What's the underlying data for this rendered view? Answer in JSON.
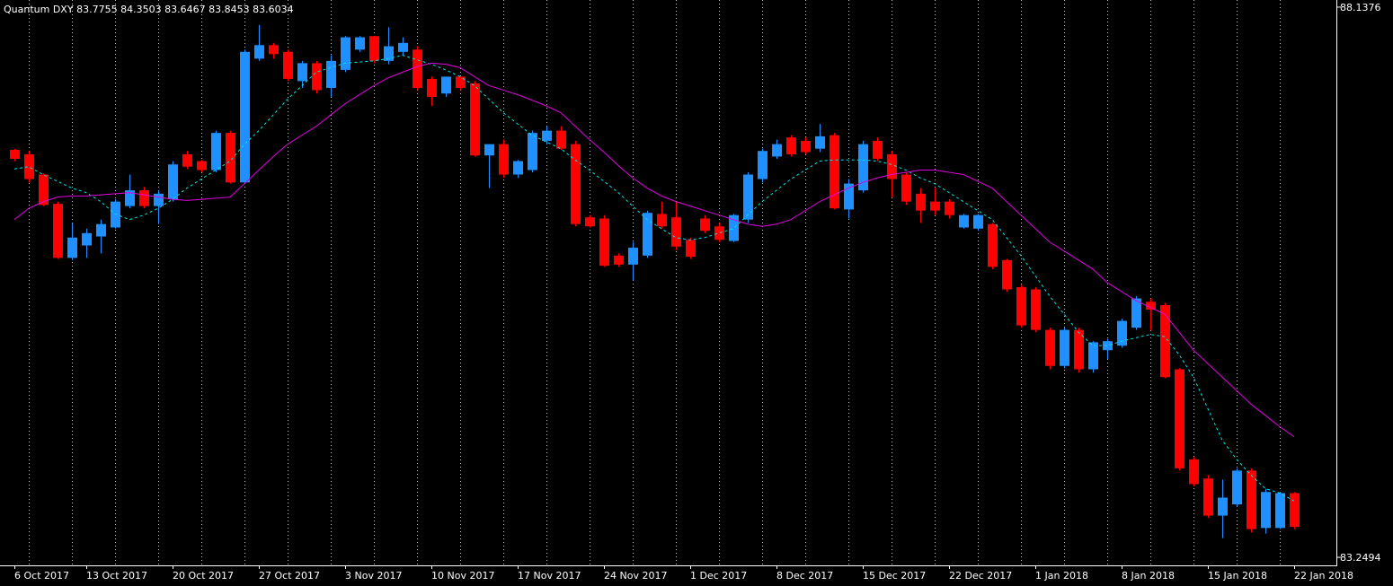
{
  "chart_data": {
    "type": "candlestick",
    "title": "Quantum DXY",
    "header_values": [
      83.7755,
      84.3503,
      83.6467,
      83.8453,
      83.6034
    ],
    "categories": [
      "6 Oct 2017",
      null,
      null,
      null,
      null,
      "13 Oct 2017",
      null,
      null,
      null,
      null,
      null,
      "20 Oct 2017",
      null,
      null,
      null,
      null,
      null,
      "27 Oct 2017",
      null,
      null,
      null,
      null,
      null,
      "3 Nov 2017",
      null,
      null,
      null,
      null,
      null,
      "10 Nov 2017",
      null,
      null,
      null,
      null,
      null,
      "17 Nov 2017",
      null,
      null,
      null,
      null,
      null,
      "24 Nov 2017",
      null,
      null,
      null,
      null,
      null,
      "1 Dec 2017",
      null,
      null,
      null,
      null,
      null,
      "8 Dec 2017",
      null,
      null,
      null,
      null,
      null,
      "15 Dec 2017",
      null,
      null,
      null,
      null,
      null,
      "22 Dec 2017",
      null,
      null,
      null,
      null,
      null,
      "1 Jan 2018",
      null,
      null,
      null,
      null,
      null,
      "8 Jan 2018",
      null,
      null,
      null,
      null,
      null,
      "15 Jan 2018",
      null,
      null,
      null,
      null,
      null,
      "22 Jan 2018"
    ],
    "open": [
      86.87,
      86.83,
      86.65,
      86.39,
      85.91,
      86.02,
      86.1,
      86.18,
      86.37,
      86.51,
      86.37,
      86.43,
      86.83,
      86.77,
      86.69,
      87.02,
      86.58,
      87.68,
      87.8,
      87.74,
      87.48,
      87.64,
      87.42,
      87.58,
      87.76,
      87.88,
      87.66,
      87.74,
      87.76,
      87.5,
      87.37,
      87.52,
      87.46,
      86.82,
      86.92,
      86.65,
      86.69,
      86.95,
      87.04,
      86.92,
      86.27,
      86.26,
      85.93,
      85.85,
      85.93,
      86.3,
      86.27,
      86.07,
      86.26,
      86.19,
      86.06,
      86.25,
      86.61,
      86.81,
      86.98,
      86.95,
      86.88,
      87.0,
      86.34,
      86.51,
      86.95,
      86.83,
      86.65,
      86.48,
      86.41,
      86.41,
      86.18,
      86.17,
      86.21,
      85.89,
      85.65,
      85.63,
      85.27,
      84.95,
      85.27,
      84.92,
      85.09,
      85.13,
      85.29,
      85.52,
      85.49,
      84.92,
      84.12,
      83.95,
      83.62,
      83.72,
      84.02,
      83.51,
      83.51,
      83.82
    ],
    "high": [
      86.88,
      86.86,
      86.66,
      86.41,
      86.22,
      86.17,
      86.25,
      86.43,
      86.65,
      86.54,
      86.51,
      86.77,
      86.86,
      86.78,
      87.04,
      87.04,
      87.76,
      87.98,
      87.82,
      87.76,
      87.66,
      87.66,
      87.71,
      87.88,
      87.88,
      87.88,
      87.96,
      87.87,
      87.79,
      87.52,
      87.52,
      87.52,
      87.48,
      86.92,
      86.96,
      86.78,
      87.04,
      87.08,
      87.08,
      86.95,
      86.29,
      86.29,
      85.95,
      86.05,
      86.33,
      86.41,
      86.41,
      86.09,
      86.29,
      86.22,
      86.3,
      86.67,
      86.88,
      86.96,
      87.0,
      86.98,
      87.1,
      87.02,
      86.61,
      86.95,
      86.98,
      86.86,
      86.67,
      86.53,
      86.53,
      86.43,
      86.3,
      86.3,
      86.22,
      85.9,
      85.67,
      85.65,
      85.29,
      85.29,
      85.29,
      85.17,
      85.19,
      85.37,
      85.57,
      85.55,
      85.51,
      84.93,
      84.14,
      83.98,
      83.94,
      84.04,
      84.04,
      83.86,
      83.83,
      83.83
    ],
    "low": [
      86.77,
      86.58,
      86.37,
      85.9,
      85.89,
      85.91,
      85.95,
      86.17,
      86.35,
      86.35,
      86.21,
      86.41,
      86.7,
      86.67,
      86.67,
      86.57,
      86.57,
      87.66,
      87.68,
      87.48,
      87.42,
      87.37,
      87.34,
      87.56,
      87.74,
      87.64,
      87.63,
      87.71,
      87.4,
      87.26,
      87.34,
      87.4,
      86.81,
      86.53,
      86.62,
      86.62,
      86.67,
      86.92,
      86.87,
      86.19,
      86.18,
      85.83,
      85.83,
      85.71,
      85.91,
      86.17,
      85.98,
      85.9,
      86.13,
      86.05,
      86.05,
      86.22,
      86.58,
      86.79,
      86.81,
      86.83,
      86.85,
      86.34,
      86.26,
      86.49,
      86.77,
      86.45,
      86.38,
      86.22,
      86.29,
      86.26,
      86.17,
      86.15,
      85.81,
      85.61,
      85.29,
      85.25,
      84.92,
      84.93,
      84.89,
      84.89,
      85.01,
      85.11,
      85.27,
      85.27,
      84.84,
      84.02,
      83.88,
      83.6,
      83.42,
      83.7,
      83.47,
      83.46,
      83.5,
      83.5
    ],
    "close": [
      86.79,
      86.61,
      86.38,
      85.91,
      86.09,
      86.13,
      86.21,
      86.41,
      86.51,
      86.37,
      86.48,
      86.74,
      86.72,
      86.69,
      87.02,
      86.58,
      87.74,
      87.8,
      87.72,
      87.5,
      87.64,
      87.4,
      87.66,
      87.87,
      87.87,
      87.66,
      87.79,
      87.82,
      87.42,
      87.34,
      87.52,
      87.42,
      86.82,
      86.92,
      86.65,
      86.77,
      87.02,
      87.04,
      86.88,
      86.21,
      86.19,
      85.84,
      85.85,
      86.0,
      86.31,
      86.19,
      86.01,
      85.92,
      86.15,
      86.07,
      86.29,
      86.65,
      86.86,
      86.92,
      86.83,
      86.85,
      86.99,
      86.35,
      86.57,
      86.92,
      86.79,
      86.61,
      86.41,
      86.33,
      86.33,
      86.29,
      86.29,
      86.29,
      85.83,
      85.63,
      85.31,
      85.27,
      84.95,
      85.27,
      84.92,
      85.16,
      85.17,
      85.35,
      85.55,
      85.45,
      84.85,
      84.04,
      83.9,
      83.62,
      83.78,
      84.02,
      83.5,
      83.83,
      83.82,
      83.52
    ],
    "up_color": "#1e90ff",
    "down_color": "#ff0000",
    "overlays": [
      {
        "color": "#00e5e5",
        "dashed": true,
        "values": [
          86.7,
          86.72,
          86.65,
          86.59,
          86.53,
          86.49,
          86.41,
          86.3,
          86.25,
          86.29,
          86.35,
          86.43,
          86.53,
          86.61,
          86.69,
          86.77,
          86.92,
          87.04,
          87.18,
          87.32,
          87.44,
          87.56,
          87.6,
          87.64,
          87.65,
          87.66,
          87.68,
          87.71,
          87.67,
          87.63,
          87.58,
          87.52,
          87.44,
          87.32,
          87.2,
          87.1,
          87.0,
          86.94,
          86.88,
          86.78,
          86.69,
          86.59,
          86.49,
          86.37,
          86.25,
          86.17,
          86.09,
          86.07,
          86.09,
          86.13,
          86.17,
          86.29,
          86.41,
          86.51,
          86.61,
          86.69,
          86.77,
          86.78,
          86.78,
          86.78,
          86.77,
          86.74,
          86.69,
          86.62,
          86.57,
          86.49,
          86.41,
          86.33,
          86.25,
          86.09,
          85.93,
          85.75,
          85.57,
          85.41,
          85.25,
          85.13,
          85.13,
          85.17,
          85.2,
          85.23,
          85.21,
          85.05,
          84.85,
          84.57,
          84.29,
          84.12,
          83.98,
          83.86,
          83.82,
          83.75
        ]
      },
      {
        "color": "#e000e0",
        "dashed": false,
        "values": [
          86.25,
          86.35,
          86.41,
          86.45,
          86.46,
          86.46,
          86.47,
          86.48,
          86.49,
          86.47,
          86.45,
          86.43,
          86.42,
          86.43,
          86.44,
          86.45,
          86.57,
          86.69,
          86.81,
          86.92,
          87.0,
          87.08,
          87.18,
          87.28,
          87.36,
          87.44,
          87.51,
          87.56,
          87.61,
          87.64,
          87.63,
          87.6,
          87.52,
          87.44,
          87.4,
          87.36,
          87.31,
          87.26,
          87.2,
          87.08,
          86.96,
          86.85,
          86.73,
          86.62,
          86.53,
          86.46,
          86.41,
          86.37,
          86.33,
          86.29,
          86.25,
          86.21,
          86.19,
          86.21,
          86.25,
          86.33,
          86.41,
          86.47,
          86.53,
          86.58,
          86.62,
          86.65,
          86.67,
          86.69,
          86.69,
          86.67,
          86.65,
          86.59,
          86.53,
          86.41,
          86.29,
          86.17,
          86.05,
          85.97,
          85.89,
          85.81,
          85.69,
          85.61,
          85.53,
          85.47,
          85.41,
          85.25,
          85.09,
          84.97,
          84.85,
          84.73,
          84.61,
          84.51,
          84.41,
          84.32
        ]
      }
    ],
    "ylim": [
      83.178,
      88.201
    ],
    "yticks": [
      83.2494,
      88.1376
    ],
    "grid": true
  }
}
